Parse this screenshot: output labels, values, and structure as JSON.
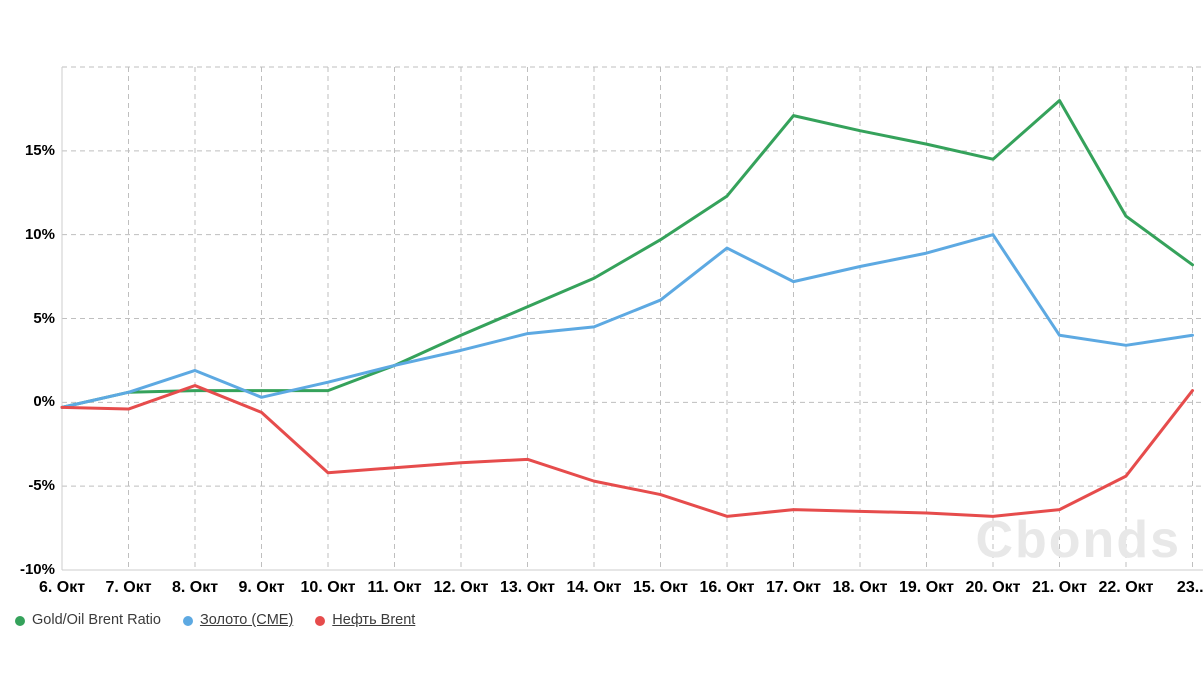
{
  "watermark": {
    "text": "Cbonds"
  },
  "chart_data": {
    "type": "line",
    "categories": [
      "6. Окт",
      "7. Окт",
      "8. Окт",
      "9. Окт",
      "10. Окт",
      "11. Окт",
      "12. Окт",
      "13. Окт",
      "14. Окт",
      "15. Окт",
      "16. Окт",
      "17. Окт",
      "18. Окт",
      "19. Окт",
      "20. Окт",
      "21. Окт",
      "22. Окт",
      "23..."
    ],
    "series": [
      {
        "name": "Gold/Oil Brent Ratio",
        "color": "#35a25b",
        "underline": false,
        "values": [
          -0.3,
          0.6,
          0.7,
          0.7,
          0.7,
          2.2,
          4.0,
          5.7,
          7.4,
          9.7,
          12.3,
          17.1,
          16.2,
          15.4,
          14.5,
          18.0,
          11.1,
          8.2
        ]
      },
      {
        "name": "Золото (CME)",
        "color": "#5da9e2",
        "underline": true,
        "values": [
          -0.3,
          0.6,
          1.9,
          0.3,
          1.2,
          2.2,
          3.1,
          4.1,
          4.5,
          6.1,
          9.2,
          7.2,
          8.1,
          8.9,
          10.0,
          4.0,
          3.4,
          4.0
        ]
      },
      {
        "name": "Нефть Brent",
        "color": "#e64c4c",
        "underline": true,
        "values": [
          -0.3,
          -0.4,
          1.0,
          -0.6,
          -4.2,
          -3.9,
          -3.6,
          -3.4,
          -4.7,
          -5.5,
          -6.8,
          -6.4,
          -6.5,
          -6.6,
          -6.8,
          -6.4,
          -4.4,
          0.7
        ]
      }
    ],
    "title": "",
    "xlabel": "",
    "ylabel": "",
    "ylim": [
      -10,
      20
    ],
    "yticks": [
      {
        "value": 20,
        "label": ""
      },
      {
        "value": 15,
        "label": "15%"
      },
      {
        "value": 10,
        "label": "10%"
      },
      {
        "value": 5,
        "label": "5%"
      },
      {
        "value": 0,
        "label": "0%"
      },
      {
        "value": -5,
        "label": "-5%"
      },
      {
        "value": -10,
        "label": "-10%"
      }
    ],
    "grid": "dashed",
    "legend_position": "bottom-left"
  },
  "colors": {
    "grid": "#bfbfbf",
    "axis": "#cccccc",
    "tick_label": "#000000",
    "legend_text": "#3b3b3b",
    "watermark": "#e8e8e8"
  }
}
